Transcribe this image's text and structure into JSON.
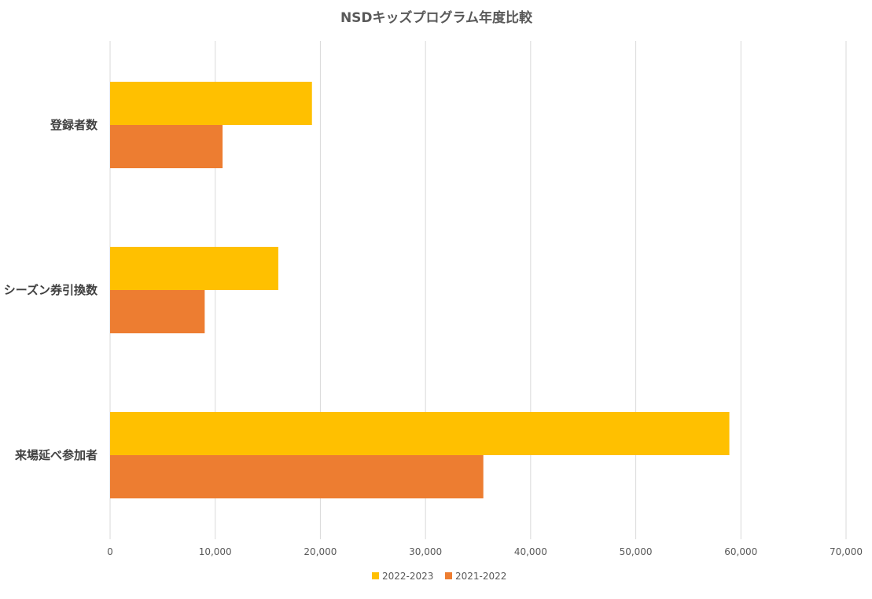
{
  "chart_data": {
    "type": "bar",
    "orientation": "horizontal",
    "title": "NSDキッズプログラム年度比較",
    "categories": [
      "登録者数",
      "シーズン券引換数",
      "来場延べ参加者"
    ],
    "series": [
      {
        "name": "2022-2023",
        "color": "#FFC000",
        "values": [
          19200,
          16000,
          58900
        ]
      },
      {
        "name": "2021-2022",
        "color": "#ED7D31",
        "values": [
          10700,
          9000,
          35500
        ]
      }
    ],
    "xlim": [
      0,
      70000
    ],
    "x_ticks": [
      "0",
      "10,000",
      "20,000",
      "30,000",
      "40,000",
      "50,000",
      "60,000",
      "70,000"
    ],
    "xlabel": "",
    "ylabel": "",
    "grid": "vertical",
    "legend_position": "bottom"
  }
}
